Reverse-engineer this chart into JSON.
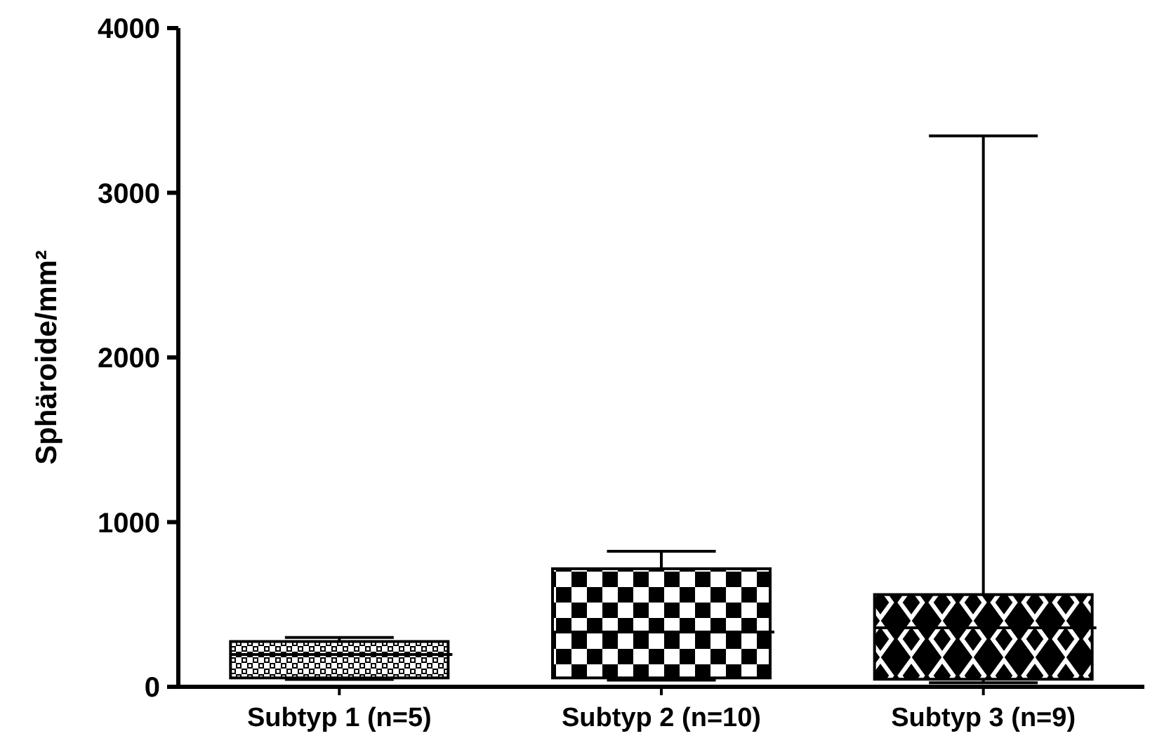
{
  "chart_data": {
    "type": "box",
    "ylabel": "Sphäroide/mm²",
    "categories": [
      "Subtyp 1 (n=5)",
      "Subtyp 2 (n=10)",
      "Subtyp 3 (n=9)"
    ],
    "color": "#000000",
    "boxes": [
      {
        "low": 45,
        "q1": 54,
        "median": 196,
        "q3": 275,
        "high": 300
      },
      {
        "low": 40,
        "q1": 54,
        "median": 333,
        "q3": 717,
        "high": 823
      },
      {
        "low": 25,
        "q1": 46,
        "median": 358,
        "q3": 560,
        "high": 3345
      }
    ],
    "ylim": [
      0,
      4000
    ],
    "yticks": [
      0,
      1000,
      2000,
      3000,
      4000
    ],
    "grid": false
  }
}
